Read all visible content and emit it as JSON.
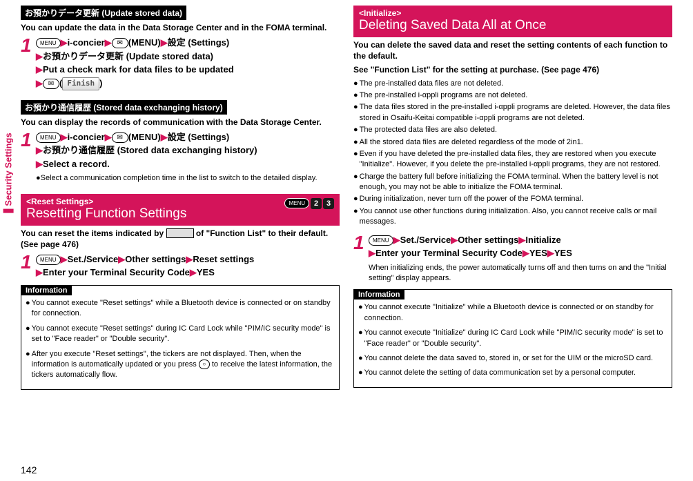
{
  "sideTab": "Security Settings",
  "pageNumber": "142",
  "colors": {
    "accent": "#d4145a"
  },
  "left": {
    "sec1": {
      "header": "お預かりデータ更新 (Update stored data)",
      "desc": "You can update the data in the Data Storage Center and in the FOMA terminal.",
      "step": {
        "line1a": "i-concier",
        "line1b": "(MENU)",
        "line1c": "設定 (Settings)",
        "line2": "お預かりデータ更新 (Update stored data)",
        "line3": "Put a check mark for data files to be updated",
        "finish": "Finish"
      }
    },
    "sec2": {
      "header": "お預かり通信履歴 (Stored data exchanging history)",
      "desc": "You can display the records of communication with the Data Storage Center.",
      "step": {
        "line1a": "i-concier",
        "line1b": "(MENU)",
        "line1c": "設定 (Settings)",
        "line2": "お預かり通信履歴 (Stored data exchanging history)",
        "line3": "Select a record.",
        "note": "Select a communication completion time in the list to switch to the detailed display."
      }
    },
    "sec3": {
      "tag": "<Reset Settings>",
      "title": "Resetting Function Settings",
      "keys": [
        "2",
        "3"
      ],
      "desc1": "You can reset the items indicated by ",
      "desc2": " of \"Function List\" to their default. (See page 476)",
      "step": {
        "line1": "Set./Service",
        "line1b": "Other settings",
        "line1c": "Reset settings",
        "line2": "Enter your Terminal Security Code",
        "line2b": "YES"
      },
      "info": {
        "header": "Information",
        "items": [
          "You cannot execute \"Reset settings\" while a Bluetooth device is connected or on standby for connection.",
          "You cannot execute \"Reset settings\" during IC Card Lock while \"PIM/IC security mode\" is set to \"Face reader\" or \"Double security\".",
          "After you execute \"Reset settings\", the tickers are not displayed. Then, when the information is automatically updated or you press        to receive the latest information, the tickers automatically flow."
        ]
      }
    }
  },
  "right": {
    "sec1": {
      "tag": "<Initialize>",
      "title": "Deleting Saved Data All at Once",
      "desc": "You can delete the saved data and reset the setting contents of each function to the default.",
      "desc2": "See \"Function List\" for the setting at purchase. (See page 476)",
      "bullets": [
        "The pre-installed data files are not deleted.",
        "The pre-installed i-αppli programs are not deleted.",
        "The data files stored in the pre-installed i-αppli programs are deleted. However, the data files stored in Osaifu-Keitai compatible i-αppli programs are not deleted.",
        "The protected data files are also deleted.",
        "All the stored data files are deleted regardless of the mode of 2in1.",
        "Even if you have deleted the pre-installed data files, they are restored when you execute \"Initialize\". However, if you delete the pre-installed i-αppli programs, they are not restored.",
        "Charge the battery full before initializing the FOMA terminal. When the battery level is not enough, you may not be able to initialize the FOMA terminal.",
        "During initialization, never turn off the power of the FOMA terminal.",
        "You cannot use other functions during initialization. Also, you cannot receive calls or mail messages."
      ],
      "step": {
        "line1": "Set./Service",
        "line1b": "Other settings",
        "line1c": "Initialize",
        "line2": "Enter your Terminal Security Code",
        "line2b": "YES",
        "line2c": "YES",
        "note": "When initializing ends, the power automatically turns off and then turns on and the \"Initial setting\" display appears."
      },
      "info": {
        "header": "Information",
        "items": [
          "You cannot execute \"Initialize\" while a Bluetooth device is connected or on standby for connection.",
          "You cannot execute \"Initialize\" during IC Card Lock while \"PIM/IC security mode\" is set to \"Face reader\" or \"Double security\".",
          "You cannot delete the data saved to, stored in, or set for the UIM or the microSD card.",
          "You cannot delete the setting of data communication set by a personal computer."
        ]
      }
    }
  }
}
